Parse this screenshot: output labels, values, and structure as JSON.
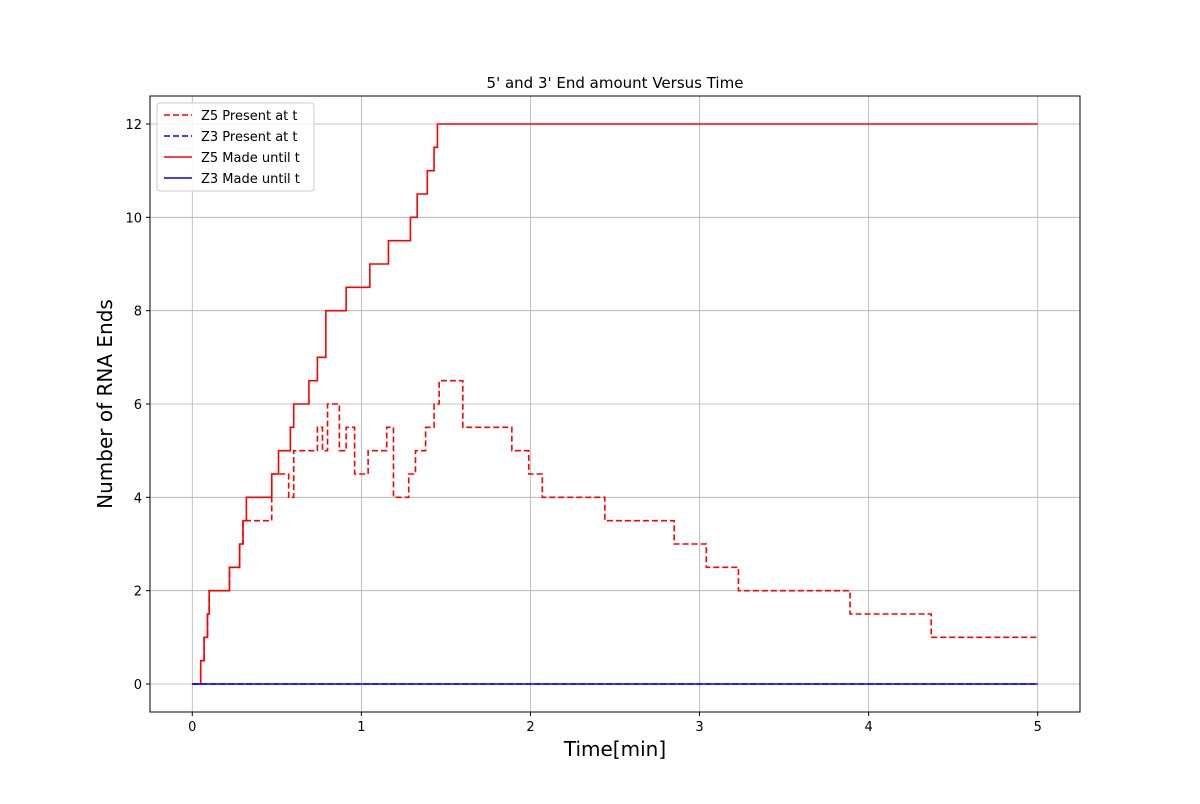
{
  "chart_data": {
    "type": "line",
    "title": "5' and 3' End amount Versus Time",
    "xlabel": "Time[min]",
    "ylabel": "Number of RNA Ends",
    "xlim": [
      -0.25,
      5.25
    ],
    "ylim": [
      -0.6,
      12.6
    ],
    "xticks": [
      0,
      1,
      2,
      3,
      4,
      5
    ],
    "yticks": [
      0,
      2,
      4,
      6,
      8,
      10,
      12
    ],
    "grid": true,
    "legend_position": "top-left",
    "series": [
      {
        "name": "Z5 Present at t",
        "color": "#ff0000",
        "style": "dashed",
        "step": "post",
        "x": [
          0,
          0.05,
          0.07,
          0.09,
          0.1,
          0.22,
          0.28,
          0.3,
          0.47,
          0.5,
          0.56,
          0.57,
          0.6,
          0.68,
          0.74,
          0.77,
          0.8,
          0.87,
          0.91,
          0.96,
          1.04,
          1.15,
          1.19,
          1.28,
          1.32,
          1.38,
          1.43,
          1.46,
          1.6,
          1.89,
          1.99,
          2.07,
          2.44,
          2.85,
          3.04,
          3.23,
          3.89,
          4.37,
          5.0
        ],
        "y": [
          0,
          0.5,
          1,
          1.5,
          2,
          2.5,
          3,
          3.5,
          4.5,
          4.5,
          4.5,
          4.0,
          5.0,
          5.0,
          5.5,
          5.0,
          6.0,
          5.0,
          5.5,
          4.5,
          5.0,
          5.5,
          4.0,
          4.5,
          5.0,
          5.5,
          6.0,
          6.5,
          5.5,
          5.0,
          4.5,
          4.0,
          3.5,
          3.0,
          2.5,
          2.0,
          1.5,
          1.0,
          1.0
        ]
      },
      {
        "name": "Z3 Present at t",
        "color": "#0000ff",
        "style": "dashed",
        "step": "post",
        "x": [
          0,
          5.0
        ],
        "y": [
          0,
          0
        ]
      },
      {
        "name": "Z5 Made until t",
        "color": "#ff0000",
        "style": "solid",
        "step": "post",
        "x": [
          0,
          0.05,
          0.07,
          0.09,
          0.1,
          0.22,
          0.28,
          0.3,
          0.32,
          0.47,
          0.51,
          0.58,
          0.6,
          0.69,
          0.74,
          0.79,
          0.91,
          1.05,
          1.16,
          1.29,
          1.33,
          1.39,
          1.43,
          1.45,
          5.0
        ],
        "y": [
          0,
          0.5,
          1,
          1.5,
          2,
          2.5,
          3,
          3.5,
          4,
          4.5,
          5,
          5.5,
          6,
          6.5,
          7,
          8,
          8.5,
          9,
          9.5,
          10,
          10.5,
          11,
          11.5,
          12,
          12
        ]
      },
      {
        "name": "Z3 Made until t",
        "color": "#0000ff",
        "style": "solid",
        "step": "post",
        "x": [
          0,
          5.0
        ],
        "y": [
          0,
          0
        ]
      }
    ]
  }
}
